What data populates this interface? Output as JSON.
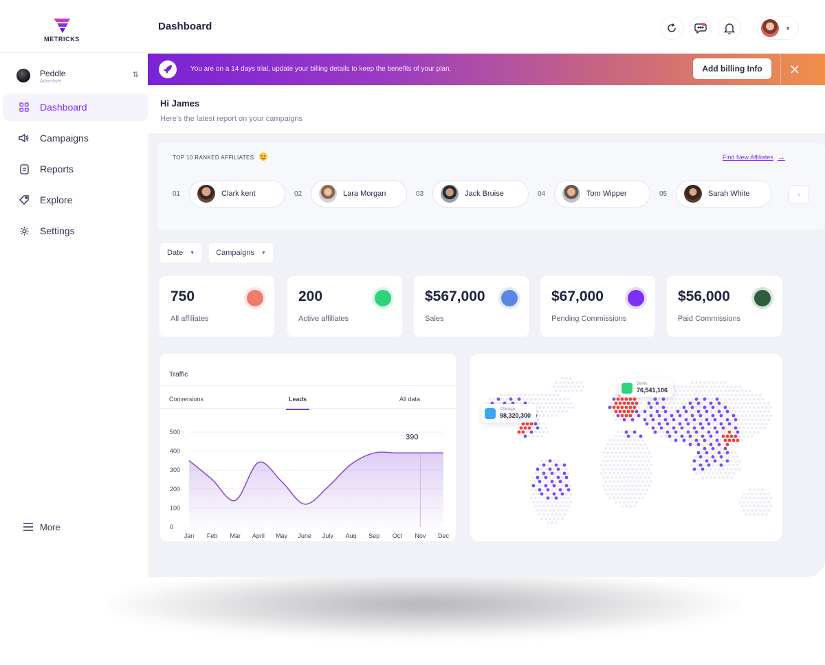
{
  "app": {
    "brand": "METRICKS"
  },
  "account": {
    "name": "Peddle",
    "role": "Advertiser"
  },
  "nav": {
    "items": [
      {
        "label": "Dashboard",
        "icon": "grid-icon"
      },
      {
        "label": "Campaigns",
        "icon": "megaphone-icon"
      },
      {
        "label": "Reports",
        "icon": "report-icon"
      },
      {
        "label": "Explore",
        "icon": "tag-icon"
      },
      {
        "label": "Settings",
        "icon": "gear-icon"
      }
    ],
    "more": "More"
  },
  "header": {
    "title": "Dashboard"
  },
  "banner": {
    "text": "You are on a 14 days trial, update your billing details to keep the benefits of your plan.",
    "button": "Add billing Info"
  },
  "greeting": {
    "title": "Hi James",
    "subtitle": "Here's the latest report on your campaigns"
  },
  "affiliates": {
    "heading": "TOP 10 RANKED AFFILIATES",
    "link": "Find New Affiliates",
    "items": [
      {
        "rank": "01",
        "name": "Clark kent"
      },
      {
        "rank": "02",
        "name": "Lara Morgan"
      },
      {
        "rank": "03",
        "name": "Jack Bruise"
      },
      {
        "rank": "04",
        "name": "Tom Wipper"
      },
      {
        "rank": "05",
        "name": "Sarah White"
      }
    ]
  },
  "filters": {
    "date": "Date",
    "campaigns": "Campaigns"
  },
  "stats": [
    {
      "value": "750",
      "label": "All affiliates",
      "color": "#ee7b6e"
    },
    {
      "value": "200",
      "label": "Active affiliates",
      "color": "#2ed47a"
    },
    {
      "value": "$567,000",
      "label": "Sales",
      "color": "#5b86e5"
    },
    {
      "value": "$67,000",
      "label": "Pending Commissions",
      "color": "#7b2ff7"
    },
    {
      "value": "$56,000",
      "label": "Paid Commissions",
      "color": "#2e5e3e"
    }
  ],
  "traffic": {
    "title": "Traffic",
    "tabs": [
      "Conversions",
      "Leads",
      "All data"
    ],
    "active_tab": "Leads"
  },
  "chart_data": {
    "type": "area",
    "categories": [
      "Jan",
      "Feb",
      "Mar",
      "April",
      "May",
      "June",
      "July",
      "Aug",
      "Sep",
      "Oct",
      "Nov",
      "Dec"
    ],
    "values": [
      350,
      250,
      140,
      340,
      240,
      120,
      210,
      330,
      390,
      390,
      390,
      390
    ],
    "yticks": [
      0,
      100,
      200,
      300,
      400,
      500
    ],
    "ylim": [
      0,
      500
    ],
    "highlight": {
      "category": "Nov",
      "label": "390"
    },
    "color": "#8b4fd8"
  },
  "map": {
    "markers": [
      {
        "city": "Chicago",
        "value": "98,320,300",
        "icon_color": "#39a8f0"
      },
      {
        "city": "Berlin",
        "value": "76,541,106",
        "icon_color": "#2ed47a"
      }
    ]
  },
  "colors": {
    "accent": "#7b2ff7",
    "banner_start": "#7a22d6",
    "banner_end": "#f08f4a"
  }
}
